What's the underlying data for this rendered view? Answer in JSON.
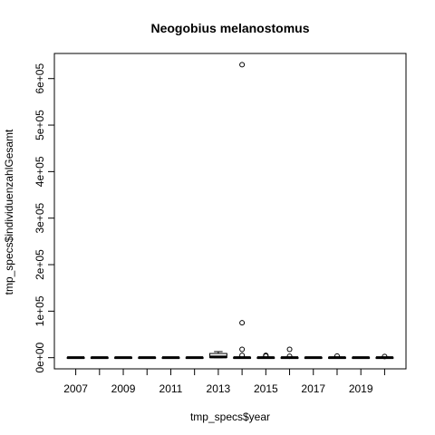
{
  "chart_data": {
    "type": "boxplot",
    "title": "Neogobius melanostomus",
    "xlabel": "tmp_specs$year",
    "ylabel": "tmp_specs$individuenzahlGesamt",
    "categories": [
      "2007",
      "2008",
      "2009",
      "2010",
      "2011",
      "2012",
      "2013",
      "2014",
      "2015",
      "2016",
      "2017",
      "2018",
      "2019",
      "2020"
    ],
    "x_tick_labels": [
      "2007",
      "2009",
      "2011",
      "2013",
      "2015",
      "2017",
      "2019"
    ],
    "y_ticks": [
      0,
      100000,
      200000,
      300000,
      400000,
      500000,
      600000
    ],
    "y_tick_labels": [
      "0e+00",
      "1e+05",
      "2e+05",
      "3e+05",
      "4e+05",
      "5e+05",
      "6e+05"
    ],
    "ylim": [
      -24000,
      654000
    ],
    "boxes": [
      {
        "year": "2007",
        "q1": 0,
        "median": 0,
        "q3": 600,
        "whisker_low": 0,
        "whisker_high": 1200,
        "outliers": []
      },
      {
        "year": "2008",
        "q1": 0,
        "median": 0,
        "q3": 600,
        "whisker_low": 0,
        "whisker_high": 1200,
        "outliers": []
      },
      {
        "year": "2009",
        "q1": 0,
        "median": 0,
        "q3": 600,
        "whisker_low": 0,
        "whisker_high": 1200,
        "outliers": []
      },
      {
        "year": "2010",
        "q1": 0,
        "median": 0,
        "q3": 600,
        "whisker_low": 0,
        "whisker_high": 1200,
        "outliers": []
      },
      {
        "year": "2011",
        "q1": 0,
        "median": 0,
        "q3": 600,
        "whisker_low": 0,
        "whisker_high": 1200,
        "outliers": []
      },
      {
        "year": "2012",
        "q1": 0,
        "median": 0,
        "q3": 600,
        "whisker_low": 0,
        "whisker_high": 1200,
        "outliers": []
      },
      {
        "year": "2013",
        "q1": 500,
        "median": 1500,
        "q3": 9000,
        "whisker_low": 0,
        "whisker_high": 13000,
        "outliers": []
      },
      {
        "year": "2014",
        "q1": 0,
        "median": 0,
        "q3": 600,
        "whisker_low": 0,
        "whisker_high": 1500,
        "outliers": [
          630000,
          75000,
          18000,
          5000
        ]
      },
      {
        "year": "2015",
        "q1": 0,
        "median": 0,
        "q3": 600,
        "whisker_low": 0,
        "whisker_high": 1500,
        "outliers": [
          5000,
          3500
        ]
      },
      {
        "year": "2016",
        "q1": 0,
        "median": 0,
        "q3": 600,
        "whisker_low": 0,
        "whisker_high": 1500,
        "outliers": [
          18000,
          3000
        ]
      },
      {
        "year": "2017",
        "q1": 0,
        "median": 0,
        "q3": 600,
        "whisker_low": 0,
        "whisker_high": 1200,
        "outliers": []
      },
      {
        "year": "2018",
        "q1": 0,
        "median": 0,
        "q3": 600,
        "whisker_low": 0,
        "whisker_high": 1500,
        "outliers": [
          3500
        ]
      },
      {
        "year": "2019",
        "q1": 0,
        "median": 0,
        "q3": 600,
        "whisker_low": 0,
        "whisker_high": 1200,
        "outliers": []
      },
      {
        "year": "2020",
        "q1": 0,
        "median": 0,
        "q3": 600,
        "whisker_low": 0,
        "whisker_high": 1500,
        "outliers": [
          2500
        ]
      }
    ],
    "grid": false,
    "legend": "none"
  }
}
